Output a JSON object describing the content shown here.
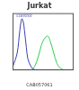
{
  "chart_data": {
    "type": "line",
    "title": "Jurkat",
    "subtitle": "CAB057061",
    "log": "x",
    "grid": false,
    "tick_labels": false,
    "xlim": [
      1,
      10000
    ],
    "ylim": [
      0,
      100
    ],
    "series": [
      {
        "name": "control",
        "color": "#3a3fb0",
        "x": [
          1,
          2,
          3,
          4,
          5,
          6,
          8,
          10,
          15,
          20,
          30
        ],
        "values": [
          5,
          30,
          70,
          90,
          85,
          70,
          40,
          20,
          8,
          3,
          1
        ]
      },
      {
        "color": "#33cc55",
        "x": [
          20,
          30,
          50,
          80,
          120,
          200,
          300,
          500,
          800,
          1200,
          2000
        ],
        "values": [
          2,
          8,
          25,
          45,
          55,
          60,
          50,
          30,
          12,
          5,
          1
        ]
      }
    ]
  }
}
